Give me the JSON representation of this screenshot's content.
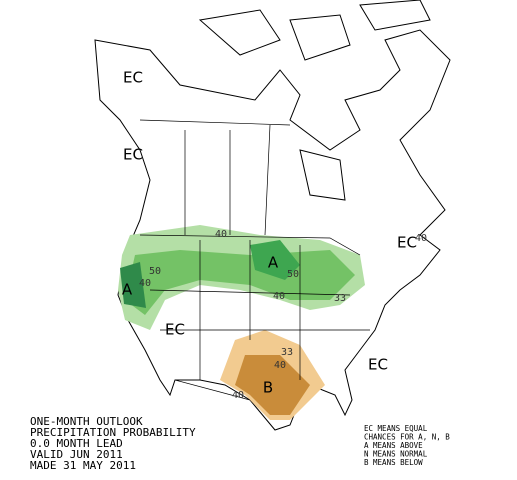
{
  "region_labels": [
    "EC",
    "EC",
    "EC",
    "EC",
    "EC",
    "A",
    "A",
    "B"
  ],
  "contour_labels": [
    40,
    40,
    50,
    40,
    50,
    40,
    33,
    33,
    40,
    40
  ],
  "title_lines": [
    "ONE-MONTH OUTLOOK",
    "PRECIPITATION PROBABILITY",
    "0.0 MONTH LEAD",
    "VALID JUN 2011",
    "MADE 31 MAY 2011"
  ],
  "legend_lines": [
    "EC MEANS EQUAL",
    "CHANCES FOR A, N, B",
    "A MEANS ABOVE",
    "N MEANS NORMAL",
    "B MEANS BELOW"
  ]
}
